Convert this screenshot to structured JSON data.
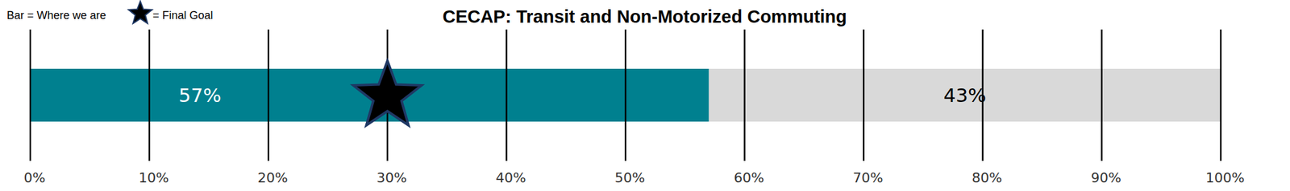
{
  "chart_data": {
    "type": "bar",
    "title": "CECAP: Transit and Non-Motorized Commuting",
    "orientation": "horizontal",
    "stacked": true,
    "data_labels": true,
    "grid": true,
    "categories": [
      null
    ],
    "series": [
      {
        "name": "Bar = Where we are",
        "color": "#00808f",
        "values": [
          57
        ],
        "value_labels": [
          "57%"
        ]
      },
      {
        "color": "#d9d9d9",
        "values": [
          43
        ],
        "value_labels": [
          "43%"
        ]
      }
    ],
    "goal": {
      "label": "= Final Goal",
      "value": 30,
      "marker": "star",
      "color": "#000000"
    },
    "xlim": [
      0,
      100
    ],
    "xticks": [
      {
        "value": 0,
        "label": "0%"
      },
      {
        "value": 10,
        "label": "10%"
      },
      {
        "value": 20,
        "label": "20%"
      },
      {
        "value": 30,
        "label": "30%"
      },
      {
        "value": 40,
        "label": "40%"
      },
      {
        "value": 50,
        "label": "50%"
      },
      {
        "value": 60,
        "label": "60%"
      },
      {
        "value": 70,
        "label": "70%"
      },
      {
        "value": 80,
        "label": "80%"
      },
      {
        "value": 90,
        "label": "90%"
      },
      {
        "value": 100,
        "label": "100%"
      }
    ]
  }
}
